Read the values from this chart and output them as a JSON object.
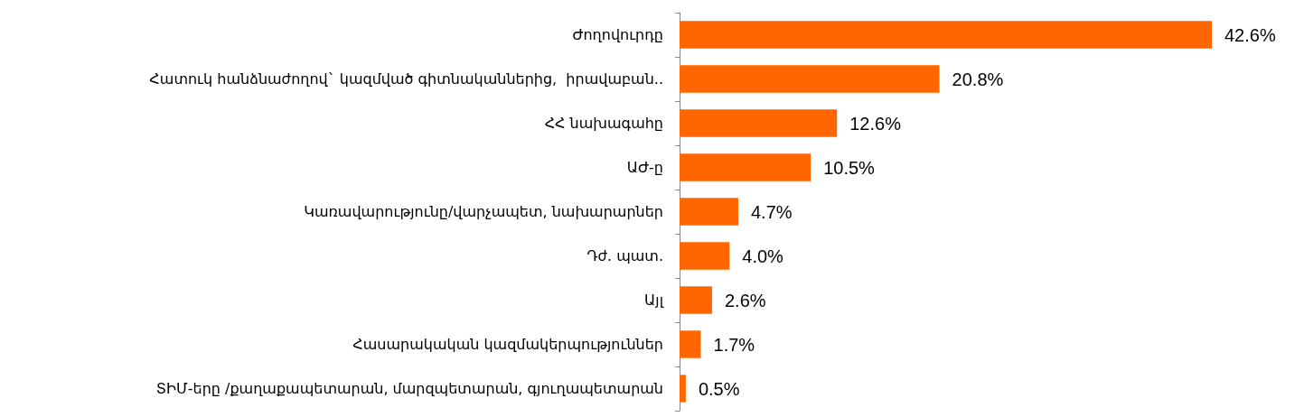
{
  "chart_data": {
    "type": "bar",
    "orientation": "horizontal",
    "categories": [
      "Ժողովուրդը",
      "Հատուկ հանձնաժողով` կազմված գիտնականներից,  իրավաբան..",
      "ՀՀ նախագահը",
      "ԱԺ-ը",
      "Կառավարությունը/վարչապետ, նախարարներ",
      "Դժ. պատ.",
      "Այլ",
      "Հասարակական կազմակերպություններ",
      "ՏԻՄ-երը /քաղաքապետարան, մարզպետարան, գյուղապետարան"
    ],
    "values": [
      42.6,
      20.8,
      12.6,
      10.5,
      4.7,
      4.0,
      2.6,
      1.7,
      0.5
    ],
    "value_labels": [
      "42.6%",
      "20.8%",
      "12.6%",
      "10.5%",
      "4.7%",
      "4.0%",
      "2.6%",
      "1.7%",
      "0.5%"
    ],
    "color": "#ff6600"
  }
}
